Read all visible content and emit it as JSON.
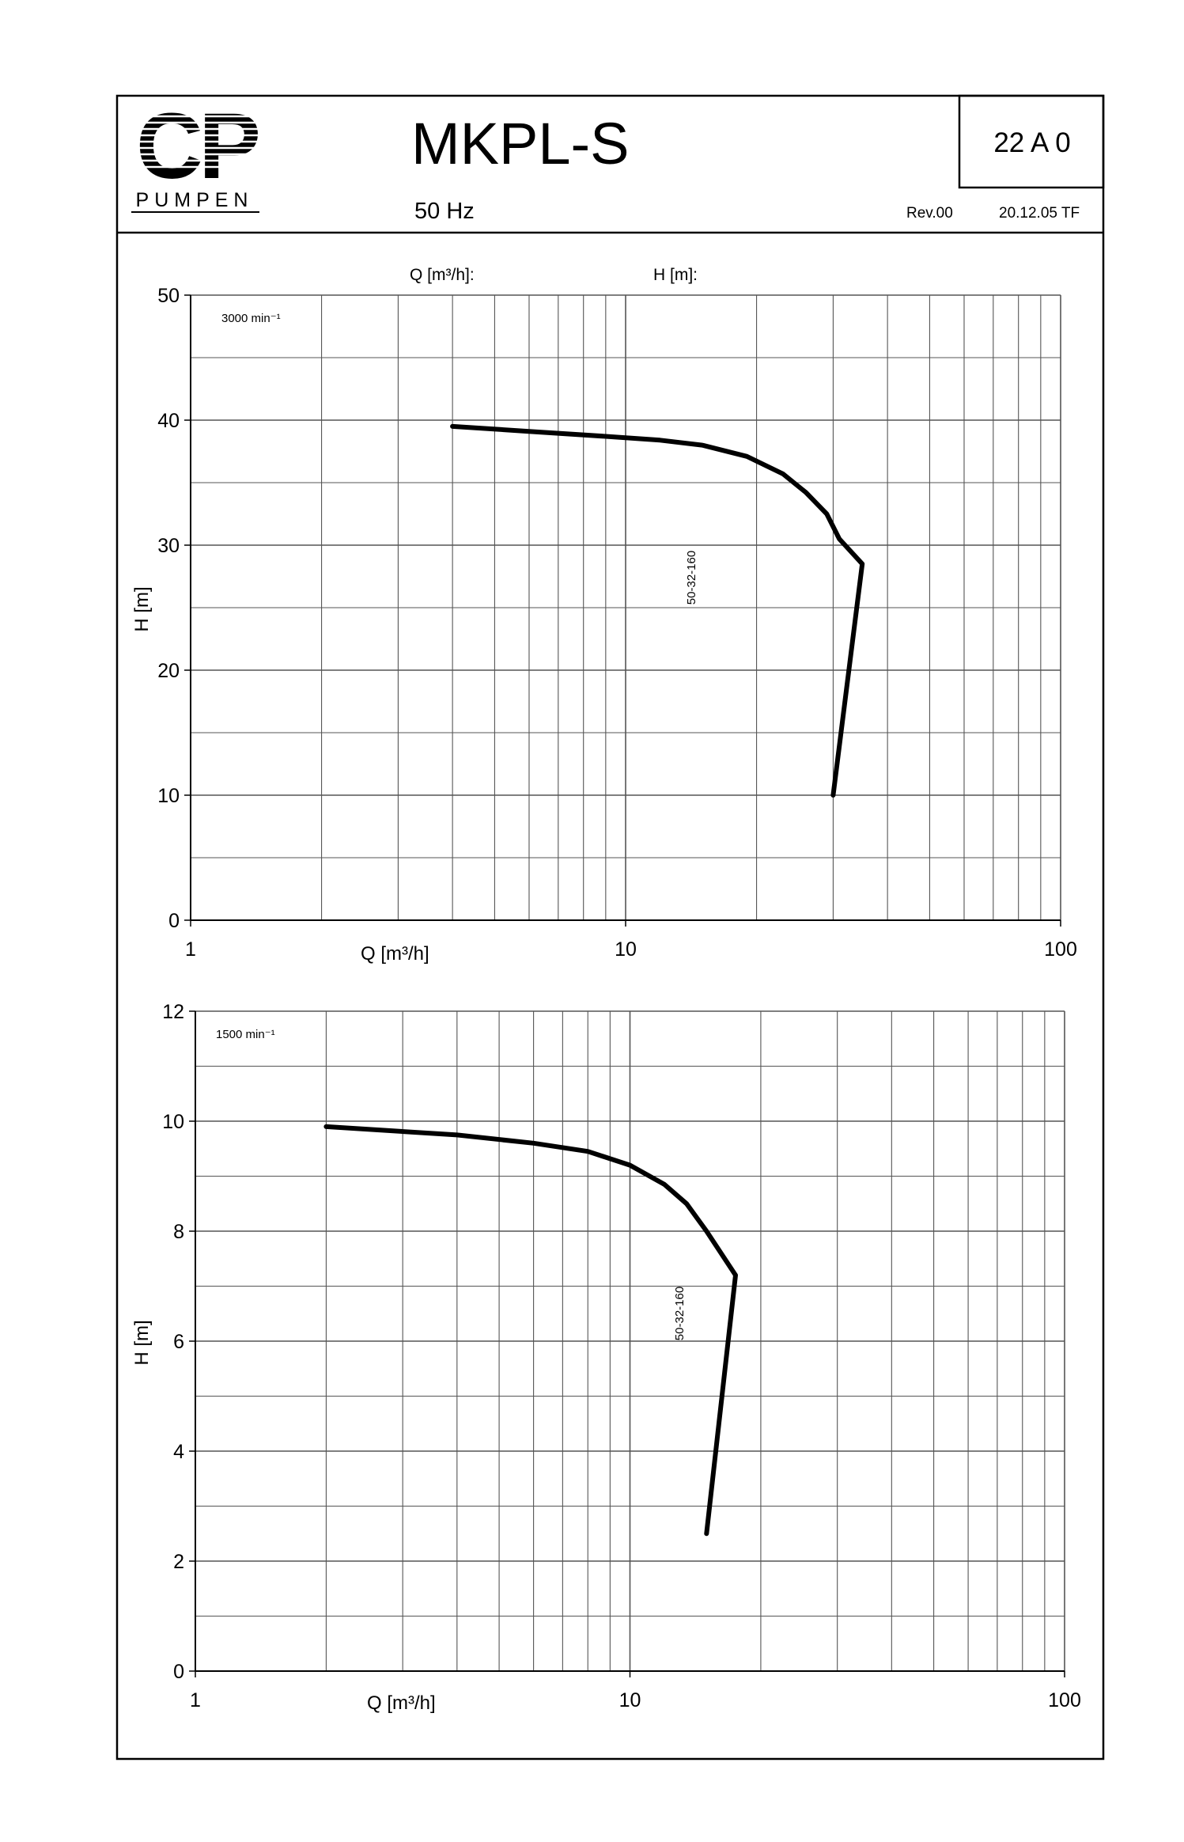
{
  "header": {
    "logo_text": "PUMPEN",
    "logo_mark": "CP",
    "title": "MKPL-S",
    "subtitle": "50 Hz",
    "doc_number": "22 A 0",
    "revision": "Rev.00",
    "date_author": "20.12.05 TF"
  },
  "top_labels": {
    "q_label": "Q [m³/h]:",
    "h_label": "H [m]:"
  },
  "chart_data": [
    {
      "type": "line",
      "speed_label": "3000 min⁻¹",
      "xlabel": "Q [m³/h]",
      "ylabel": "H [m]",
      "xscale": "log",
      "xlim": [
        1,
        100
      ],
      "ylim": [
        0,
        50
      ],
      "xticks": [
        "1",
        "10",
        "100"
      ],
      "yticks": [
        "0",
        "10",
        "20",
        "30",
        "40",
        "50"
      ],
      "grid": true,
      "series": [
        {
          "name": "50-32-160",
          "x": [
            4,
            6,
            9,
            12,
            15,
            19,
            23,
            26,
            29,
            31,
            35,
            30
          ],
          "y": [
            39.5,
            39.1,
            38.7,
            38.4,
            38.0,
            37.1,
            35.7,
            34.2,
            32.5,
            30.5,
            28.5,
            10.0
          ]
        }
      ]
    },
    {
      "type": "line",
      "speed_label": "1500 min⁻¹",
      "xlabel": "Q [m³/h]",
      "ylabel": "H [m]",
      "xscale": "log",
      "xlim": [
        1,
        100
      ],
      "ylim": [
        0,
        12
      ],
      "xticks": [
        "1",
        "10",
        "100"
      ],
      "yticks": [
        "0",
        "2",
        "4",
        "6",
        "8",
        "10",
        "12"
      ],
      "grid": true,
      "series": [
        {
          "name": "50-32-160",
          "x": [
            2,
            4,
            6,
            8,
            10,
            12,
            13.5,
            15,
            17.5,
            15
          ],
          "y": [
            9.9,
            9.75,
            9.6,
            9.45,
            9.2,
            8.85,
            8.5,
            8.0,
            7.2,
            2.5
          ]
        }
      ]
    }
  ]
}
